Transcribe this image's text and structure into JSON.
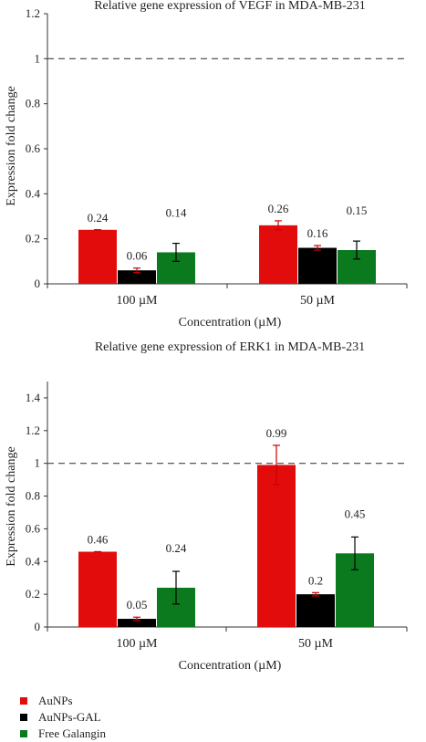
{
  "chart_data": [
    {
      "type": "bar",
      "title": "Relative gene expression of VEGF in MDA-MB-231",
      "ylabel": "Expression fold change",
      "xlabel": "Concentration (µM)",
      "categories": [
        "100 µM",
        "50 µM"
      ],
      "ylim": [
        0,
        1.2
      ],
      "yticks": [
        "0",
        "0.2",
        "0.4",
        "0.6",
        "0.8",
        "1",
        "1.2"
      ],
      "reference_line": 1.0,
      "series": [
        {
          "name": "AuNPs",
          "values": [
            0.24,
            0.26
          ],
          "errors": [
            0.0,
            0.02
          ],
          "labels": [
            "0.24",
            "0.26"
          ]
        },
        {
          "name": "AuNPs-GAL",
          "values": [
            0.06,
            0.16
          ],
          "errors": [
            0.01,
            0.01
          ],
          "labels": [
            "0.06",
            "0.16"
          ]
        },
        {
          "name": "Free Galangin",
          "values": [
            0.14,
            0.15
          ],
          "errors": [
            0.04,
            0.04
          ],
          "labels": [
            "0.14",
            "0.15"
          ]
        }
      ]
    },
    {
      "type": "bar",
      "title": "Relative gene expression of ERK1 in MDA-MB-231",
      "ylabel": "Expression fold change",
      "xlabel": "Concentration (µM)",
      "categories": [
        "100 µM",
        "50 µM"
      ],
      "ylim": [
        0,
        1.5
      ],
      "yticks": [
        "0",
        "0.2",
        "0.4",
        "0.6",
        "0.8",
        "1",
        "1.2",
        "1.4"
      ],
      "reference_line": 1.0,
      "series": [
        {
          "name": "AuNPs",
          "values": [
            0.46,
            0.99
          ],
          "errors": [
            0.0,
            0.12
          ],
          "labels": [
            "0.46",
            "0.99"
          ]
        },
        {
          "name": "AuNPs-GAL",
          "values": [
            0.05,
            0.2
          ],
          "errors": [
            0.01,
            0.01
          ],
          "labels": [
            "0.05",
            "0.2"
          ]
        },
        {
          "name": "Free Galangin",
          "values": [
            0.24,
            0.45
          ],
          "errors": [
            0.1,
            0.1
          ],
          "labels": [
            "0.24",
            "0.45"
          ]
        }
      ]
    }
  ],
  "legend": [
    {
      "label": "AuNPs",
      "color": "#e30c0c"
    },
    {
      "label": "AuNPs-GAL",
      "color": "#000000"
    },
    {
      "label": "Free Galangin",
      "color": "#0b7a1f"
    }
  ],
  "error_bar_colors": [
    "#cc0000",
    "#cc0000",
    "#000000"
  ]
}
